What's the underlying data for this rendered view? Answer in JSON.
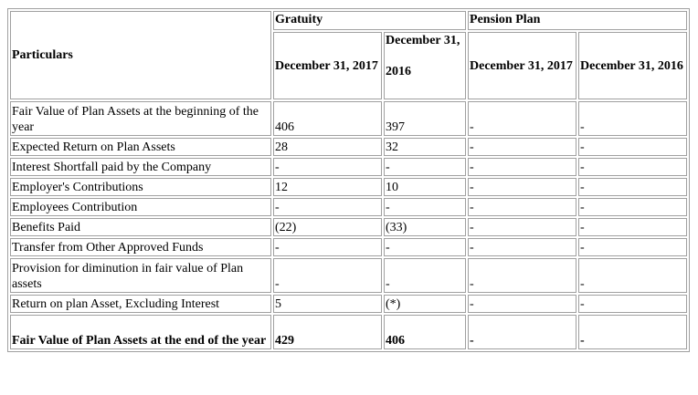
{
  "headers": {
    "particulars": "Particulars",
    "gratuity": "Gratuity",
    "pension": "Pension Plan",
    "gratuity_2017": "December 31, 2017",
    "gratuity_2016_line1": "December 31,",
    "gratuity_2016_line2": "2016",
    "pension_2017": "December 31, 2017",
    "pension_2016": "December 31, 2016"
  },
  "rows": [
    {
      "label": "Fair Value of Plan Assets at the beginning of the year",
      "g2017": "406",
      "g2016": "397",
      "p2017": "-",
      "p2016": "-"
    },
    {
      "label": "Expected Return on Plan Assets",
      "g2017": "28",
      "g2016": "32",
      "p2017": "-",
      "p2016": "-"
    },
    {
      "label": "Interest Shortfall paid by the Company",
      "g2017": "-",
      "g2016": "-",
      "p2017": "-",
      "p2016": "-"
    },
    {
      "label": "Employer's Contributions",
      "g2017": "12",
      "g2016": "10",
      "p2017": "-",
      "p2016": "-"
    },
    {
      "label": "Employees Contribution",
      "g2017": "-",
      "g2016": "-",
      "p2017": "-",
      "p2016": "-"
    },
    {
      "label": "Benefits Paid",
      "g2017": "(22)",
      "g2016": "(33)",
      "p2017": "-",
      "p2016": "-"
    },
    {
      "label": "Transfer from Other Approved Funds",
      "g2017": "-",
      "g2016": "-",
      "p2017": "-",
      "p2016": "-"
    },
    {
      "label": "Provision for diminution in fair value of Plan assets",
      "g2017": "-",
      "g2016": "-",
      "p2017": "-",
      "p2016": "-"
    },
    {
      "label": "Return on plan Asset, Excluding Interest",
      "g2017": "5",
      "g2016": "(*)",
      "p2017": "-",
      "p2016": "-"
    },
    {
      "label": "Fair Value of Plan Assets at the end of the year",
      "g2017": "429",
      "g2016": "406",
      "p2017": "-",
      "p2016": "-"
    }
  ]
}
